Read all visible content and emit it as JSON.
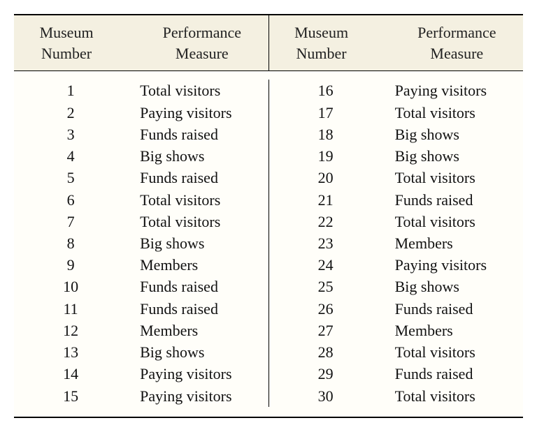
{
  "table": {
    "type": "table",
    "background_color": "#fffef9",
    "header_background": "#f4f0e1",
    "border_color": "#000000",
    "text_color": "#111111",
    "font_family": "Georgia, serif",
    "header_fontsize": 22,
    "body_fontsize": 22,
    "columns": [
      {
        "line1": "Museum",
        "line2": "Number",
        "key": "num",
        "align": "center",
        "width_pct": 38
      },
      {
        "line1": "Performance",
        "line2": "Measure",
        "key": "measure",
        "align": "left",
        "width_pct": 62
      }
    ],
    "left_rows": [
      {
        "num": "1",
        "measure": "Total visitors"
      },
      {
        "num": "2",
        "measure": "Paying visitors"
      },
      {
        "num": "3",
        "measure": "Funds raised"
      },
      {
        "num": "4",
        "measure": "Big shows"
      },
      {
        "num": "5",
        "measure": "Funds raised"
      },
      {
        "num": "6",
        "measure": "Total visitors"
      },
      {
        "num": "7",
        "measure": "Total visitors"
      },
      {
        "num": "8",
        "measure": "Big shows"
      },
      {
        "num": "9",
        "measure": "Members"
      },
      {
        "num": "10",
        "measure": "Funds raised"
      },
      {
        "num": "11",
        "measure": "Funds raised"
      },
      {
        "num": "12",
        "measure": "Members"
      },
      {
        "num": "13",
        "measure": "Big shows"
      },
      {
        "num": "14",
        "measure": "Paying visitors"
      },
      {
        "num": "15",
        "measure": "Paying visitors"
      }
    ],
    "right_rows": [
      {
        "num": "16",
        "measure": "Paying visitors"
      },
      {
        "num": "17",
        "measure": "Total visitors"
      },
      {
        "num": "18",
        "measure": "Big shows"
      },
      {
        "num": "19",
        "measure": "Big shows"
      },
      {
        "num": "20",
        "measure": "Total visitors"
      },
      {
        "num": "21",
        "measure": "Funds raised"
      },
      {
        "num": "22",
        "measure": "Total visitors"
      },
      {
        "num": "23",
        "measure": "Members"
      },
      {
        "num": "24",
        "measure": "Paying visitors"
      },
      {
        "num": "25",
        "measure": "Big shows"
      },
      {
        "num": "26",
        "measure": "Funds raised"
      },
      {
        "num": "27",
        "measure": "Members"
      },
      {
        "num": "28",
        "measure": "Total visitors"
      },
      {
        "num": "29",
        "measure": "Funds raised"
      },
      {
        "num": "30",
        "measure": "Total visitors"
      }
    ]
  }
}
